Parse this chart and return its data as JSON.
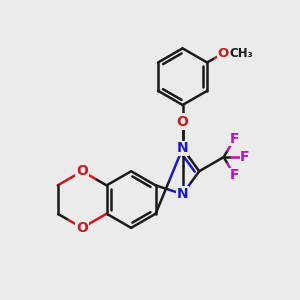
{
  "background_color": "#ebebeb",
  "bond_color": "#1a1a1a",
  "nitrogen_color": "#1a1acc",
  "oxygen_color": "#cc1a1a",
  "fluorine_color": "#bb10bb",
  "line_width": 1.8,
  "dbo": 0.055,
  "figsize": [
    3.0,
    3.0
  ],
  "dpi": 100,
  "xlim": [
    0.0,
    10.0
  ],
  "ylim": [
    0.0,
    10.5
  ]
}
